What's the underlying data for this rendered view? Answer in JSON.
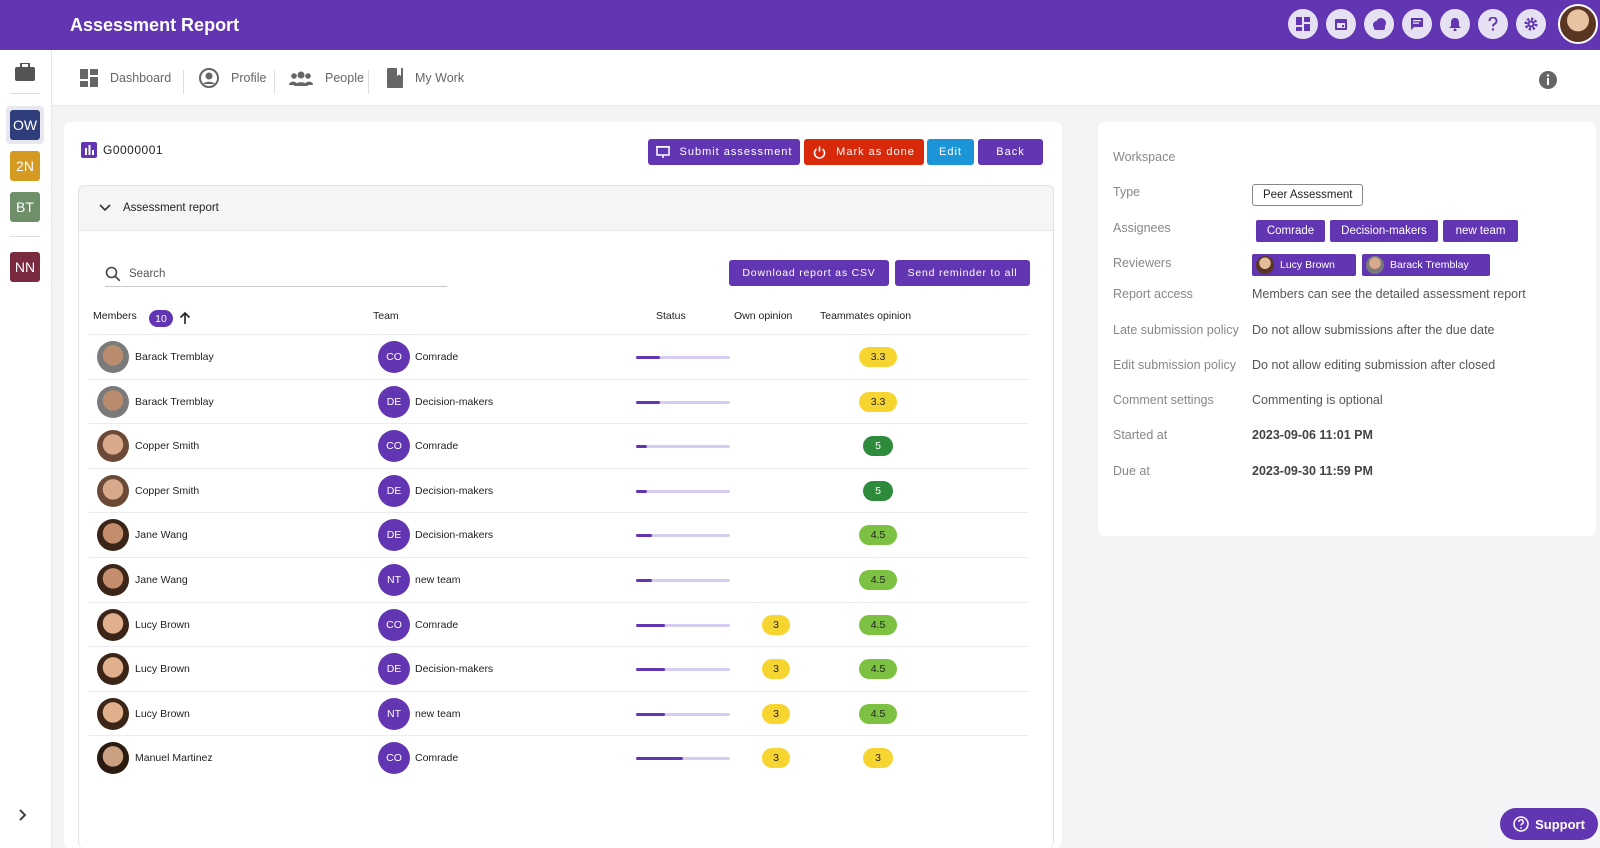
{
  "app": {
    "title": "Assessment Report"
  },
  "top_icons": [
    "dashboard-icon",
    "calendar-icon",
    "cloud-icon",
    "chat-icon",
    "bell-icon",
    "help-icon",
    "settings-icon"
  ],
  "rail": {
    "workspaces": [
      {
        "label": "OW",
        "color": "#2f3e7a"
      },
      {
        "label": "2N",
        "color": "#d49a22"
      },
      {
        "label": "BT",
        "color": "#6f8f6a"
      },
      {
        "label": "NN",
        "color": "#7a2a3e"
      }
    ]
  },
  "nav": {
    "dashboard": "Dashboard",
    "profile": "Profile",
    "people": "People",
    "my_work": "My Work"
  },
  "header": {
    "id": "G0000001"
  },
  "buttons": {
    "submit": "Submit assessment",
    "mark_done": "Mark as done",
    "edit": "Edit",
    "back": "Back"
  },
  "report": {
    "section_title": "Assessment report",
    "search_placeholder": "Search",
    "download_label": "Download report as CSV",
    "reminder_label": "Send reminder to all",
    "columns": {
      "members": "Members",
      "member_count": "10",
      "team": "Team",
      "status": "Status",
      "own": "Own opinion",
      "teammates": "Teammates opinion"
    },
    "rows": [
      {
        "name": "Barack Tremblay",
        "team_initials": "CO",
        "team": "Comrade",
        "progress": 0.25,
        "own": "",
        "teammates": "3.3"
      },
      {
        "name": "Barack Tremblay",
        "team_initials": "DE",
        "team": "Decision-makers",
        "progress": 0.25,
        "own": "",
        "teammates": "3.3"
      },
      {
        "name": "Copper Smith",
        "team_initials": "CO",
        "team": "Comrade",
        "progress": 0.12,
        "own": "",
        "teammates": "5"
      },
      {
        "name": "Copper Smith",
        "team_initials": "DE",
        "team": "Decision-makers",
        "progress": 0.12,
        "own": "",
        "teammates": "5"
      },
      {
        "name": "Jane Wang",
        "team_initials": "DE",
        "team": "Decision-makers",
        "progress": 0.17,
        "own": "",
        "teammates": "4.5"
      },
      {
        "name": "Jane Wang",
        "team_initials": "NT",
        "team": "new team",
        "progress": 0.17,
        "own": "",
        "teammates": "4.5"
      },
      {
        "name": "Lucy Brown",
        "team_initials": "CO",
        "team": "Comrade",
        "progress": 0.31,
        "own": "3",
        "teammates": "4.5"
      },
      {
        "name": "Lucy Brown",
        "team_initials": "DE",
        "team": "Decision-makers",
        "progress": 0.31,
        "own": "3",
        "teammates": "4.5"
      },
      {
        "name": "Lucy Brown",
        "team_initials": "NT",
        "team": "new team",
        "progress": 0.31,
        "own": "3",
        "teammates": "4.5"
      },
      {
        "name": "Manuel Martinez",
        "team_initials": "CO",
        "team": "Comrade",
        "progress": 0.5,
        "own": "3",
        "teammates": "3"
      }
    ]
  },
  "details": {
    "workspace_label": "Workspace",
    "type_label": "Type",
    "type_value": "Peer Assessment",
    "assignees_label": "Assignees",
    "assignees": [
      "Comrade",
      "Decision-makers",
      "new team"
    ],
    "reviewers_label": "Reviewers",
    "reviewers": [
      "Lucy Brown",
      "Barack Tremblay"
    ],
    "report_access_label": "Report access",
    "report_access": "Members can see the detailed assessment report",
    "late_label": "Late submission policy",
    "late": "Do not allow submissions after the due date",
    "edit_label": "Edit submission policy",
    "edit": "Do not allow editing submission after closed",
    "comment_label": "Comment settings",
    "comment": "Commenting is optional",
    "started_label": "Started at",
    "started": "2023-09-06 11:01 PM",
    "due_label": "Due at",
    "due": "2023-09-30 11:59 PM"
  },
  "support": {
    "label": "Support"
  },
  "colors": {
    "primary": "#6236b3",
    "danger": "#d9290b",
    "info": "#1b95d8",
    "score_yellow": "#f7d531",
    "score_green": "#2e8b3c",
    "score_light_green": "#7cc142"
  }
}
